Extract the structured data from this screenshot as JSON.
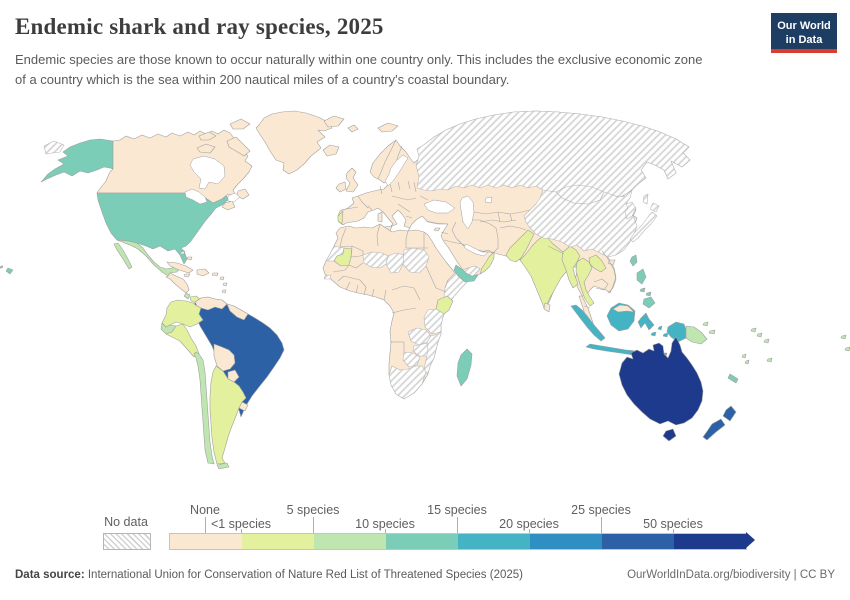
{
  "header": {
    "title": "Endemic shark and ray species, 2025",
    "subtitle": "Endemic species are those known to occur naturally within one country only. This includes the exclusive economic zone of a country which is the sea within 200 nautical miles of a country's coastal boundary.",
    "logo": {
      "line1": "Our World",
      "line2": "in Data",
      "bg": "#1d3d63",
      "accent": "#d93d32"
    }
  },
  "legend": {
    "no_data_label": "No data",
    "labels": [
      "None",
      "<1 species",
      "5 species",
      "10 species",
      "15 species",
      "20 species",
      "25 species",
      "50 species"
    ]
  },
  "footer": {
    "source_label": "Data source:",
    "source_text": " International Union for Conservation of Nature Red List of Threatened Species (2025)",
    "right_text": "OurWorldInData.org/biodiversity | CC BY"
  },
  "chart_data": {
    "type": "choropleth_map",
    "title": "Endemic shark and ray species, 2025",
    "unit": "endemic species",
    "palette": {
      "None": "#fbe8d2",
      "<1 to 5": "#e3f09e",
      "5 to 10": "#bfe5b1",
      "10 to 15": "#7ccdb8",
      "15 to 20": "#44b3c3",
      "20 to 25": "#2f8fc2",
      "25 to 50": "#2d61a6",
      "50+": "#1d3a8c"
    },
    "no_data": {
      "label": "No data",
      "pattern": "diagonal-hatch"
    },
    "countries": [
      {
        "name": "Canada",
        "value": "None"
      },
      {
        "name": "Greenland",
        "value": "None"
      },
      {
        "name": "United States",
        "value": "10 to 15"
      },
      {
        "name": "Alaska (US)",
        "value": "10 to 15"
      },
      {
        "name": "Hawaii (US)",
        "value": "10 to 15"
      },
      {
        "name": "Mexico",
        "value": "5 to 10"
      },
      {
        "name": "Central America",
        "value": "None"
      },
      {
        "name": "Costa Rica",
        "value": "5 to 10"
      },
      {
        "name": "Panama",
        "value": "<1 to 5"
      },
      {
        "name": "Cuba",
        "value": "None"
      },
      {
        "name": "Hispaniola",
        "value": "None"
      },
      {
        "name": "Jamaica",
        "value": "None"
      },
      {
        "name": "Puerto Rico",
        "value": "None"
      },
      {
        "name": "Bahamas",
        "value": "None"
      },
      {
        "name": "Lesser Antilles",
        "value": "None"
      },
      {
        "name": "Colombia",
        "value": "<1 to 5"
      },
      {
        "name": "Venezuela",
        "value": "None"
      },
      {
        "name": "Guianas",
        "value": "None"
      },
      {
        "name": "Ecuador",
        "value": "5 to 10"
      },
      {
        "name": "Peru",
        "value": "<1 to 5"
      },
      {
        "name": "Brazil",
        "value": "25 to 50"
      },
      {
        "name": "Bolivia",
        "value": "None"
      },
      {
        "name": "Paraguay",
        "value": "None"
      },
      {
        "name": "Uruguay",
        "value": "None"
      },
      {
        "name": "Argentina",
        "value": "<1 to 5"
      },
      {
        "name": "Chile",
        "value": "5 to 10"
      },
      {
        "name": "Tierra del Fuego",
        "value": "5 to 10"
      },
      {
        "name": "Iceland",
        "value": "None"
      },
      {
        "name": "United Kingdom",
        "value": "None"
      },
      {
        "name": "Ireland",
        "value": "None"
      },
      {
        "name": "Europe",
        "value": "None"
      },
      {
        "name": "Portugal",
        "value": "<1 to 5"
      },
      {
        "name": "Svalbard",
        "value": "None"
      },
      {
        "name": "Franz Josef Land",
        "value": "None"
      },
      {
        "name": "Morocco",
        "value": "None"
      },
      {
        "name": "Western Sahara",
        "value": "No data"
      },
      {
        "name": "Algeria",
        "value": "None"
      },
      {
        "name": "Libya",
        "value": "None"
      },
      {
        "name": "Egypt",
        "value": "None"
      },
      {
        "name": "Mauritania",
        "value": "<1 to 5"
      },
      {
        "name": "Mali",
        "value": "None"
      },
      {
        "name": "Niger",
        "value": "No data"
      },
      {
        "name": "Chad",
        "value": "No data"
      },
      {
        "name": "Sudan",
        "value": "No data"
      },
      {
        "name": "Senegal",
        "value": "None"
      },
      {
        "name": "Guinea-Bissau",
        "value": "No data"
      },
      {
        "name": "West Africa coast",
        "value": "None"
      },
      {
        "name": "Nigeria",
        "value": "None"
      },
      {
        "name": "DR Congo",
        "value": "None"
      },
      {
        "name": "Ethiopia",
        "value": "None"
      },
      {
        "name": "Somalia",
        "value": "No data"
      },
      {
        "name": "Kenya",
        "value": "<1 to 5"
      },
      {
        "name": "Tanzania",
        "value": "No data"
      },
      {
        "name": "Angola",
        "value": "None"
      },
      {
        "name": "Zambia",
        "value": "No data"
      },
      {
        "name": "Zimbabwe",
        "value": "No data"
      },
      {
        "name": "Mozambique",
        "value": "No data"
      },
      {
        "name": "Namibia",
        "value": "None"
      },
      {
        "name": "Botswana",
        "value": "No data"
      },
      {
        "name": "South Africa",
        "value": "No data"
      },
      {
        "name": "Madagascar",
        "value": "10 to 15"
      },
      {
        "name": "Middle East",
        "value": "None"
      },
      {
        "name": "Saudi Arabia",
        "value": "None"
      },
      {
        "name": "Yemen",
        "value": "10 to 15"
      },
      {
        "name": "Oman",
        "value": "<1 to 5"
      },
      {
        "name": "Iran",
        "value": "None"
      },
      {
        "name": "Afghanistan",
        "value": "None"
      },
      {
        "name": "Pakistan",
        "value": "<1 to 5"
      },
      {
        "name": "India",
        "value": "<1 to 5"
      },
      {
        "name": "Sri Lanka",
        "value": "None"
      },
      {
        "name": "Bangladesh",
        "value": "5 to 10"
      },
      {
        "name": "Russia",
        "value": "No data"
      },
      {
        "name": "Kazakhstan",
        "value": "None"
      },
      {
        "name": "Central Asia",
        "value": "None"
      },
      {
        "name": "Mongolia",
        "value": "No data"
      },
      {
        "name": "China",
        "value": "No data"
      },
      {
        "name": "Korea",
        "value": "No data"
      },
      {
        "name": "Japan",
        "value": "No data"
      },
      {
        "name": "Sakhalin",
        "value": "No data"
      },
      {
        "name": "Taiwan",
        "value": "10 to 15"
      },
      {
        "name": "Hainan",
        "value": "None"
      },
      {
        "name": "Myanmar",
        "value": "<1 to 5"
      },
      {
        "name": "Thailand",
        "value": "<1 to 5"
      },
      {
        "name": "Laos",
        "value": "<1 to 5"
      },
      {
        "name": "Cambodia",
        "value": "None"
      },
      {
        "name": "Vietnam",
        "value": "None"
      },
      {
        "name": "Malaysia",
        "value": "None"
      },
      {
        "name": "Malaysian Borneo",
        "value": "None"
      },
      {
        "name": "Indonesia",
        "value": "15 to 20"
      },
      {
        "name": "Philippines",
        "value": "10 to 15"
      },
      {
        "name": "West Papua",
        "value": "15 to 20"
      },
      {
        "name": "Papua New Guinea",
        "value": "5 to 10"
      },
      {
        "name": "Australia",
        "value": "50+"
      },
      {
        "name": "Tasmania",
        "value": "50+"
      },
      {
        "name": "New Zealand",
        "value": "25 to 50"
      },
      {
        "name": "New Caledonia",
        "value": "10 to 15"
      },
      {
        "name": "Vanuatu",
        "value": "5 to 10"
      },
      {
        "name": "Fiji",
        "value": "5 to 10"
      },
      {
        "name": "Solomon Islands",
        "value": "5 to 10"
      }
    ]
  }
}
